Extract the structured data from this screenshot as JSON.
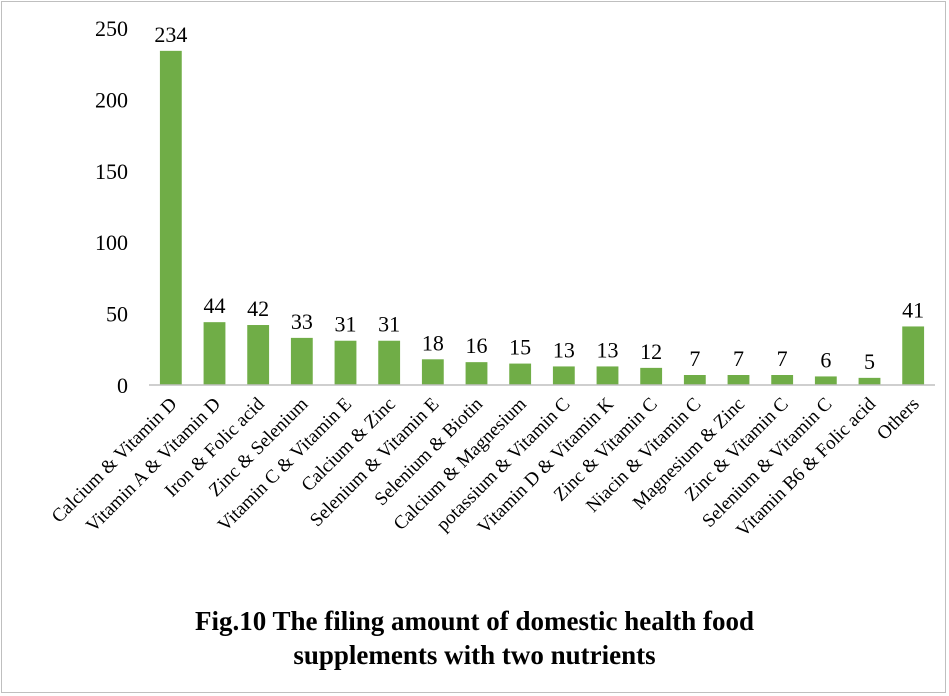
{
  "figure": {
    "caption_line1": "Fig.10 The filing amount of domestic health food",
    "caption_line2": "supplements with two nutrients"
  },
  "colors": {
    "bar": "#70ad47",
    "axis": "#bfbfbf",
    "frame": "#bfbfbf"
  },
  "chart_data": {
    "type": "bar",
    "title": "",
    "xlabel": "",
    "ylabel": "",
    "ylim": [
      0,
      250
    ],
    "yticks": [
      0,
      50,
      100,
      150,
      200,
      250
    ],
    "grid": false,
    "legend": "none",
    "categories": [
      "Calcium & Vitamin D",
      "Vitamin A & Vitamin D",
      "Iron & Folic acid",
      "Zinc & Selenium",
      "Vitamin C & Vitamin E",
      "Calcium & Zinc",
      "Selenium & Vitamin E",
      "Selenium & Biotin",
      "Calcium & Magnesium",
      "potassium & Vitamin C",
      "Vitamin D & Vitamin K",
      "Zinc & Vitamin C",
      "Niacin & Vitamin C",
      "Magnesium & Zinc",
      "Zinc & Vitamin C",
      "Selenium & Vitamin C",
      "Vitamin B6 & Folic acid",
      "Others"
    ],
    "values": [
      234,
      44,
      42,
      33,
      31,
      31,
      18,
      16,
      15,
      13,
      13,
      12,
      7,
      7,
      7,
      6,
      5,
      41
    ]
  }
}
